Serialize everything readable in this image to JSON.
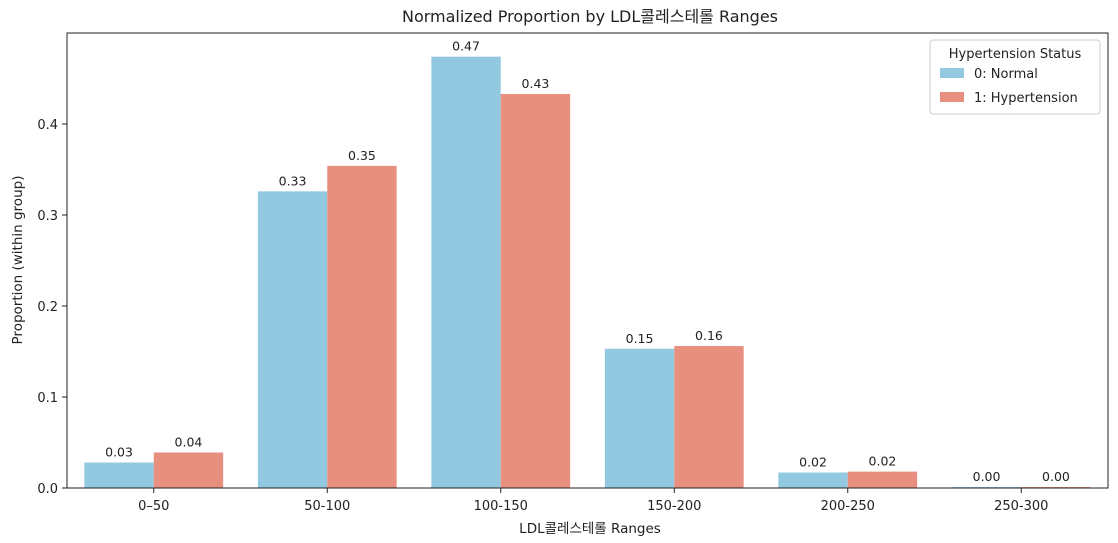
{
  "chart_data": {
    "type": "bar",
    "title": "Normalized Proportion by LDL콜레스테롤 Ranges",
    "xlabel": "LDL콜레스테롤 Ranges",
    "ylabel": "Proportion (within group)",
    "ylim": [
      0,
      0.5
    ],
    "yticks": [
      0.0,
      0.1,
      0.2,
      0.3,
      0.4
    ],
    "ytick_labels": [
      "0.0",
      "0.1",
      "0.2",
      "0.3",
      "0.4"
    ],
    "categories": [
      "0–50",
      "50-100",
      "100-150",
      "150-200",
      "200-250",
      "250-300"
    ],
    "series": [
      {
        "name": "0: Normal",
        "color": "#92c9e0",
        "values": [
          0.028,
          0.326,
          0.474,
          0.153,
          0.017,
          0.001
        ],
        "labels": [
          "0.03",
          "0.33",
          "0.47",
          "0.15",
          "0.02",
          "0.00"
        ]
      },
      {
        "name": "1: Hypertension",
        "color": "#e8907f",
        "values": [
          0.039,
          0.354,
          0.433,
          0.156,
          0.018,
          0.001
        ],
        "labels": [
          "0.04",
          "0.35",
          "0.43",
          "0.16",
          "0.02",
          "0.00"
        ]
      }
    ],
    "legend": {
      "title": "Hypertension Status",
      "placement": "top-right"
    },
    "grid": false
  }
}
